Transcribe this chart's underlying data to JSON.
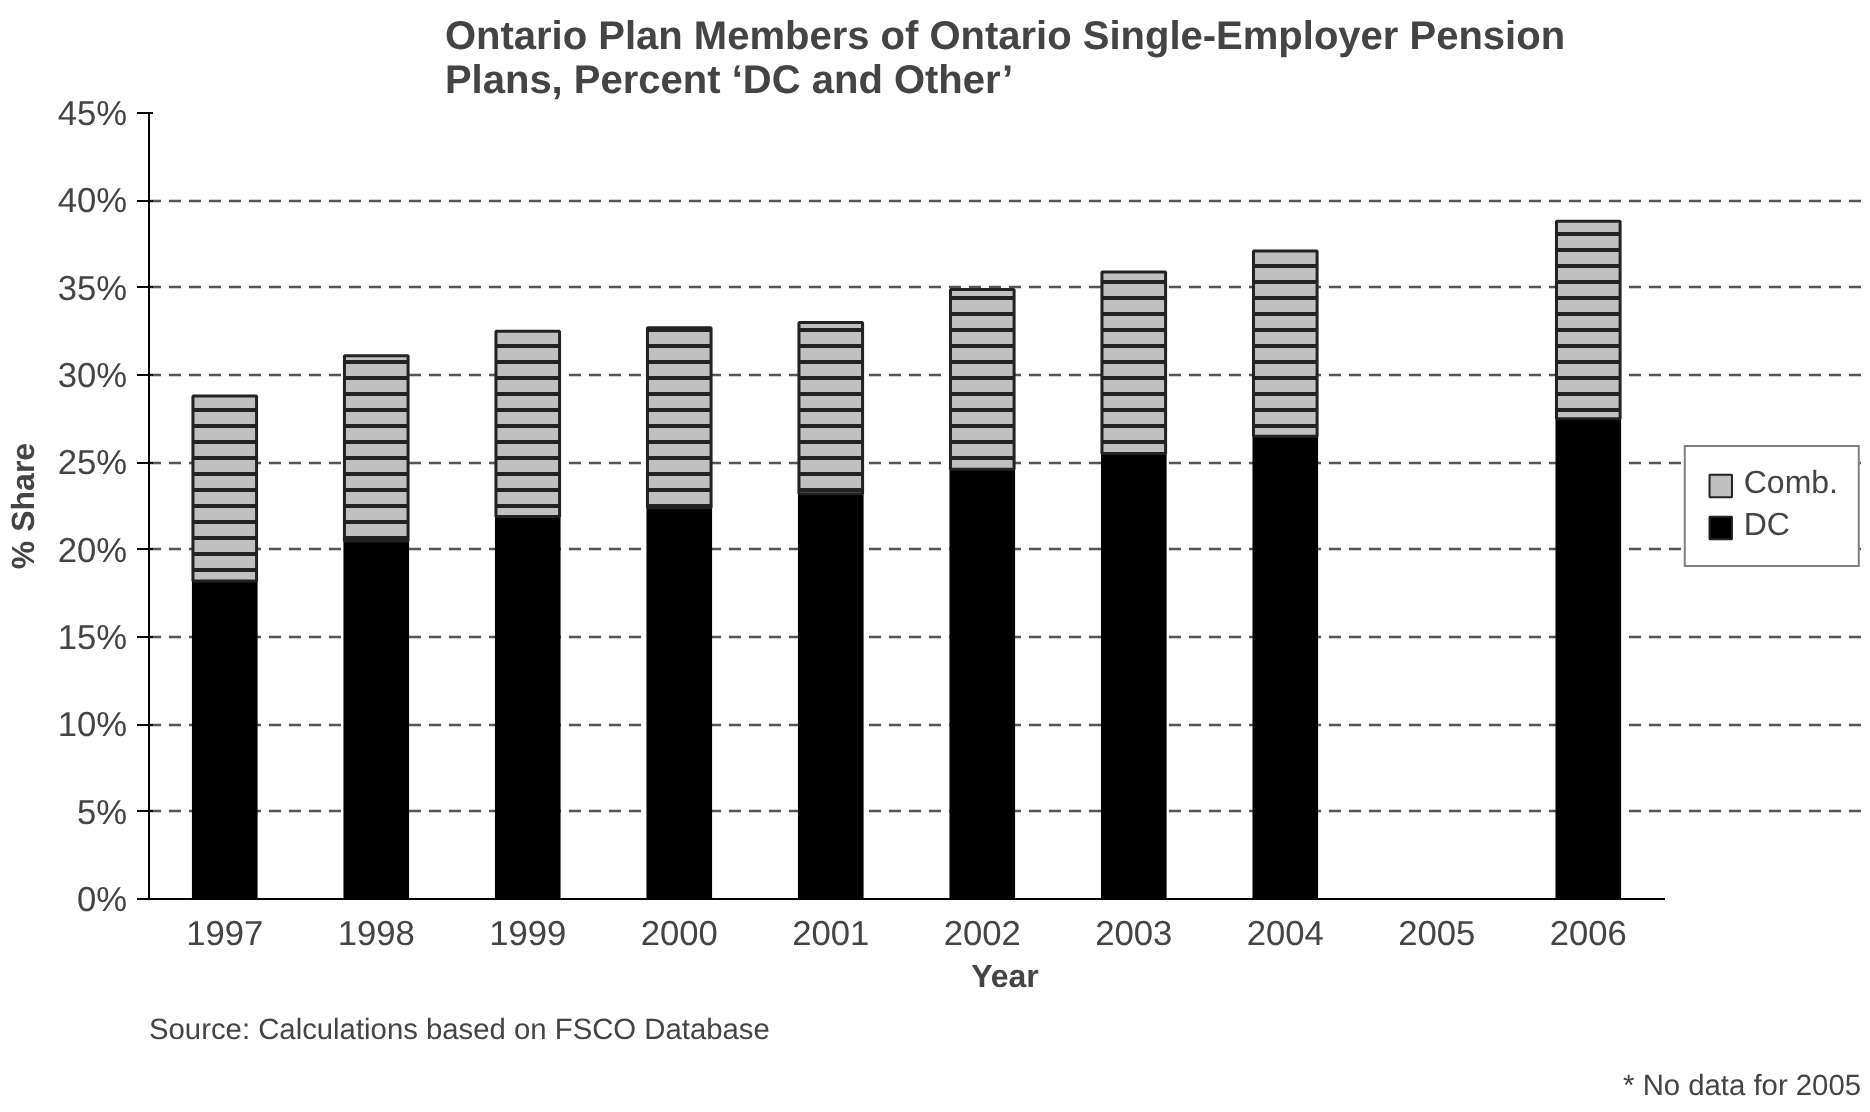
{
  "chart_data": {
    "type": "bar",
    "stacked": true,
    "title": "Ontario Plan Members of Ontario Single-Employer Pension\nPlans, Percent ‘DC and Other’",
    "xlabel": "Year",
    "ylabel": "% Share",
    "categories": [
      "1997",
      "1998",
      "1999",
      "2000",
      "2001",
      "2002",
      "2003",
      "2004",
      "2005",
      "2006"
    ],
    "series": [
      {
        "name": "DC",
        "color": "#000000",
        "values": [
          18.2,
          20.5,
          21.9,
          22.4,
          23.2,
          24.6,
          25.5,
          26.5,
          null,
          27.5
        ]
      },
      {
        "name": "Comb.",
        "color": "#c0c0c0",
        "values": [
          10.6,
          10.6,
          10.6,
          10.3,
          9.8,
          10.3,
          10.4,
          10.6,
          null,
          11.3
        ]
      }
    ],
    "ylim": [
      0,
      45
    ],
    "yticks": [
      {
        "value": 0,
        "label": "0%"
      },
      {
        "value": 5,
        "label": "5%"
      },
      {
        "value": 10,
        "label": "10%"
      },
      {
        "value": 15,
        "label": "15%"
      },
      {
        "value": 20,
        "label": "20%"
      },
      {
        "value": 25,
        "label": "25%"
      },
      {
        "value": 30,
        "label": "30%"
      },
      {
        "value": 35,
        "label": "35%"
      },
      {
        "value": 40,
        "label": "40%"
      },
      {
        "value": 45,
        "label": "45%"
      }
    ],
    "grid": "y",
    "legend": "right",
    "annotations": [
      "Source: Calculations based on FSCO Database",
      "* No data for 2005"
    ]
  }
}
